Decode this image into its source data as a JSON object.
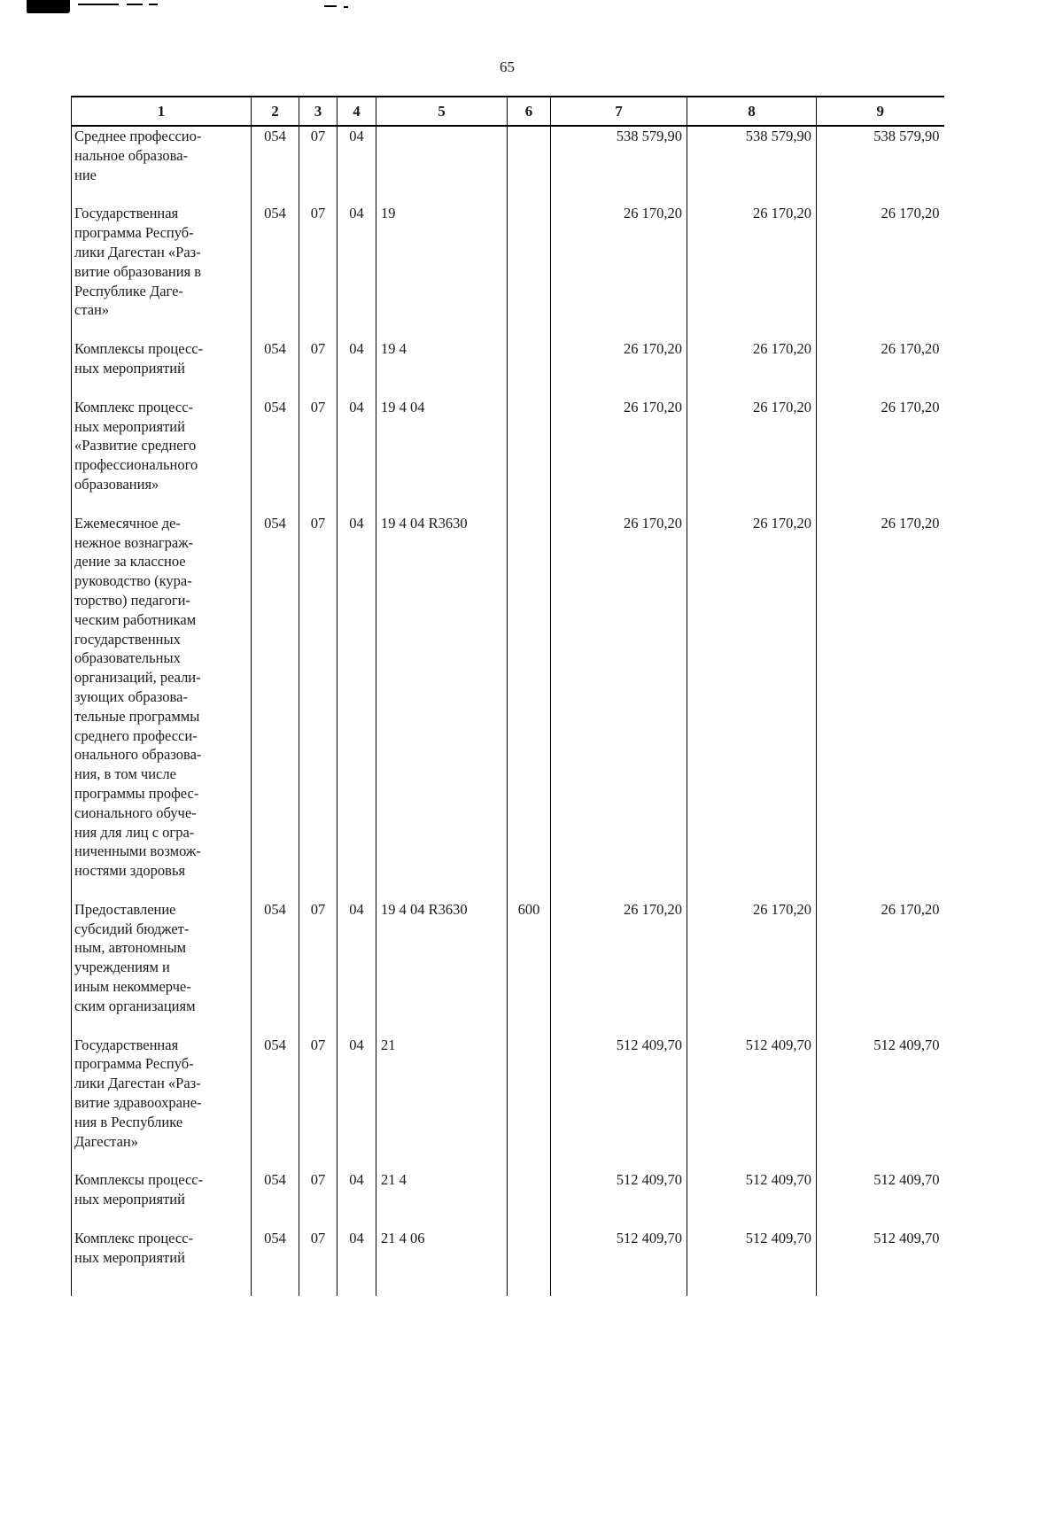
{
  "page": {
    "number": "65"
  },
  "table": {
    "columns": [
      "1",
      "2",
      "3",
      "4",
      "5",
      "6",
      "7",
      "8",
      "9"
    ],
    "col_names": [
      "cell-name",
      "cell-grbs-code",
      "cell-section-code",
      "cell-subsection-code",
      "cell-target-article-code",
      "cell-expense-type-code",
      "cell-amount",
      "cell-amount",
      "cell-amount"
    ],
    "rows": [
      [
        "Среднее профессио-\nнальное образова-\nние",
        "054",
        "07",
        "04",
        "",
        "",
        "538 579,90",
        "538 579,90",
        "538 579,90"
      ],
      [
        "Государственная\nпрограмма Респуб-\nлики Дагестан «Раз-\nвитие образования в\nРеспублике Даге-\nстан»",
        "054",
        "07",
        "04",
        "19",
        "",
        "26 170,20",
        "26 170,20",
        "26 170,20"
      ],
      [
        "Комплексы процесс-\nных мероприятий",
        "054",
        "07",
        "04",
        "19 4",
        "",
        "26 170,20",
        "26 170,20",
        "26 170,20"
      ],
      [
        "Комплекс процесс-\nных мероприятий\n«Развитие среднего\nпрофессионального\nобразования»",
        "054",
        "07",
        "04",
        "19 4 04",
        "",
        "26 170,20",
        "26 170,20",
        "26 170,20"
      ],
      [
        "Ежемесячное де-\nнежное вознаграж-\nдение за классное\nруководство (кура-\nторство) педагоги-\nческим работникам\nгосударственных\nобразовательных\nорганизаций, реали-\nзующих образова-\nтельные программы\nсреднего професси-\nонального образова-\nния, в том числе\nпрограммы профес-\nсионального обуче-\nния для лиц с огра-\nниченными возмож-\nностями здоровья",
        "054",
        "07",
        "04",
        "19 4 04 R3630",
        "",
        "26 170,20",
        "26 170,20",
        "26 170,20"
      ],
      [
        "Предоставление\nсубсидий бюджет-\nным, автономным\nучреждениям и\nиным некоммерче-\nским организациям",
        "054",
        "07",
        "04",
        "19 4 04 R3630",
        "600",
        "26 170,20",
        "26 170,20",
        "26 170,20"
      ],
      [
        "Государственная\nпрограмма Респуб-\nлики Дагестан «Раз-\nвитие здравоохране-\nния в Республике\nДагестан»",
        "054",
        "07",
        "04",
        "21",
        "",
        "512 409,70",
        "512 409,70",
        "512 409,70"
      ],
      [
        "Комплексы процесс-\nных мероприятий",
        "054",
        "07",
        "04",
        "21 4",
        "",
        "512 409,70",
        "512 409,70",
        "512 409,70"
      ],
      [
        "Комплекс процесс-\nных мероприятий",
        "054",
        "07",
        "04",
        "21 4 06",
        "",
        "512 409,70",
        "512 409,70",
        "512 409,70"
      ]
    ]
  }
}
